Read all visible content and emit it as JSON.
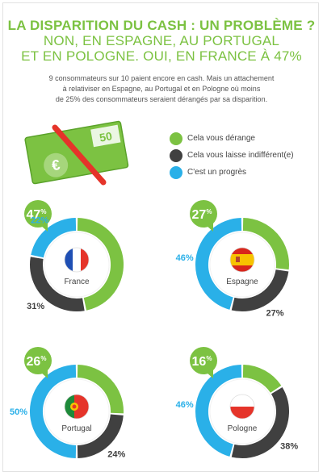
{
  "title": {
    "line1": "LA DISPARITION DU CASH : UN PROBLÈME ?",
    "line2": "NON, EN ESPAGNE, AU PORTUGAL",
    "line3": "ET EN POLOGNE. OUI, EN FRANCE À 47%"
  },
  "intro": {
    "line1": "9 consommateurs sur 10 paient encore en cash. Mais un attachement",
    "line2": "à relativiser en Espagne, au Portugal et en Pologne où moins",
    "line3": "de 25% des consommateurs seraient dérangés par sa disparition."
  },
  "banknote": {
    "value": "50",
    "symbol": "€"
  },
  "colors": {
    "green": "#7cc242",
    "dark": "#404040",
    "blue": "#2ab0e8",
    "red": "#e5342a"
  },
  "chart_data": {
    "type": "pie",
    "series": [
      {
        "name": "Cela vous dérange",
        "color": "#7cc242"
      },
      {
        "name": "Cela vous laisse indifférent(e)",
        "color": "#404040"
      },
      {
        "name": "C'est un progrès",
        "color": "#2ab0e8"
      }
    ],
    "charts": [
      {
        "country": "France",
        "values": [
          47,
          31,
          22
        ],
        "flag": "france-flag-icon"
      },
      {
        "country": "Espagne",
        "values": [
          27,
          27,
          46
        ],
        "flag": "spain-flag-icon"
      },
      {
        "country": "Portugal",
        "values": [
          26,
          24,
          50
        ],
        "flag": "portugal-flag-icon"
      },
      {
        "country": "Pologne",
        "values": [
          16,
          38,
          46
        ],
        "flag": "poland-flag-icon"
      }
    ],
    "unit": "%"
  }
}
